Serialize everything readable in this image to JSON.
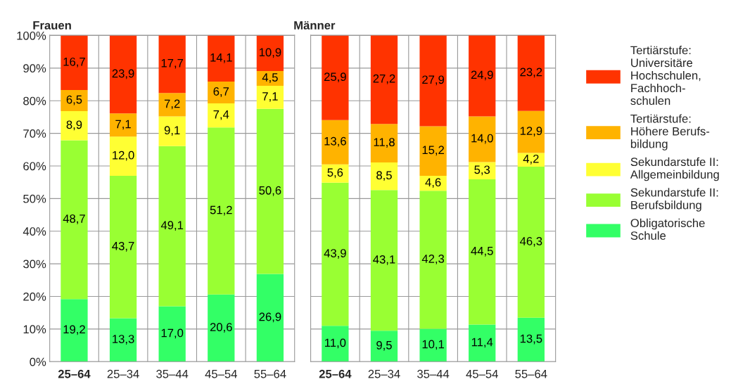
{
  "chart_data": [
    {
      "type": "bar",
      "stacked": true,
      "title": "Frauen",
      "categories": [
        "25–64",
        "25–34",
        "35–44",
        "45–54",
        "55–64"
      ],
      "ylim": [
        0,
        100.1
      ],
      "yticks": [
        {
          "value": 0,
          "label": "0%"
        },
        {
          "value": 10,
          "label": "10%"
        },
        {
          "value": 20,
          "label": "20%"
        },
        {
          "value": 30,
          "label": "30%"
        },
        {
          "value": 40,
          "label": "40%"
        },
        {
          "value": 50,
          "label": "50%"
        },
        {
          "value": 60,
          "label": "60%"
        },
        {
          "value": 70,
          "label": "70%"
        },
        {
          "value": 80,
          "label": "80%"
        },
        {
          "value": 90,
          "label": "90%"
        },
        {
          "value": 100,
          "label": "100%"
        }
      ],
      "grid": "y",
      "series": [
        {
          "color": "#33ff66",
          "values": [
            19.2,
            13.3,
            17.0,
            20.6,
            26.9
          ],
          "value_labels": [
            "19,2",
            "13,3",
            "17,0",
            "20,6",
            "26,9"
          ]
        },
        {
          "color": "#99ff33",
          "values": [
            48.7,
            43.7,
            49.1,
            51.2,
            50.6
          ],
          "value_labels": [
            "48,7",
            "43,7",
            "49,1",
            "51,2",
            "50,6"
          ]
        },
        {
          "color": "#ffff33",
          "values": [
            8.9,
            12.0,
            9.1,
            7.4,
            7.1
          ],
          "value_labels": [
            "8,9",
            "12,0",
            "9,1",
            "7,4",
            "7,1"
          ]
        },
        {
          "color": "#ffb300",
          "values": [
            6.5,
            7.1,
            7.2,
            6.7,
            4.5
          ],
          "value_labels": [
            "6,5",
            "7,1",
            "7,2",
            "6,7",
            "4,5"
          ]
        },
        {
          "color": "#ff3300",
          "values": [
            16.7,
            23.9,
            17.7,
            14.1,
            10.9
          ],
          "value_labels": [
            "16,7",
            "23,9",
            "17,7",
            "14,1",
            "10,9"
          ]
        }
      ]
    },
    {
      "type": "bar",
      "stacked": true,
      "title": "Männer",
      "categories": [
        "25–64",
        "25–34",
        "35–44",
        "45–54",
        "55–64"
      ],
      "ylim": [
        0,
        100.1
      ],
      "yticks": [
        {
          "value": 0,
          "label": null
        },
        {
          "value": 10,
          "label": null
        },
        {
          "value": 20,
          "label": null
        },
        {
          "value": 30,
          "label": null
        },
        {
          "value": 40,
          "label": null
        },
        {
          "value": 50,
          "label": null
        },
        {
          "value": 60,
          "label": null
        },
        {
          "value": 70,
          "label": null
        },
        {
          "value": 80,
          "label": null
        },
        {
          "value": 90,
          "label": null
        },
        {
          "value": 100,
          "label": null
        }
      ],
      "grid": "y",
      "tick_labels": "x",
      "legend": "right",
      "series": [
        {
          "name": "Obligatorische\nSchule",
          "color": "#33ff66",
          "values": [
            11.0,
            9.5,
            10.1,
            11.4,
            13.5
          ],
          "value_labels": [
            "11,0",
            "9,5",
            "10,1",
            "11,4",
            "13,5"
          ]
        },
        {
          "name": "Sekundarstufe II:\nBerufsbildung",
          "color": "#99ff33",
          "values": [
            43.9,
            43.1,
            42.3,
            44.5,
            46.3
          ],
          "value_labels": [
            "43,9",
            "43,1",
            "42,3",
            "44,5",
            "46,3"
          ]
        },
        {
          "name": "Sekundarstufe II:\nAllgemeinbildung",
          "color": "#ffff33",
          "values": [
            5.6,
            8.5,
            4.6,
            5.3,
            4.2
          ],
          "value_labels": [
            "5,6",
            "8,5",
            "4,6",
            "5,3",
            "4,2"
          ]
        },
        {
          "name": "Tertiärstufe:\nHöhere Berufs-\nbildung",
          "color": "#ffb300",
          "values": [
            13.6,
            11.8,
            15.2,
            14.0,
            12.9
          ],
          "value_labels": [
            "13,6",
            "11,8",
            "15,2",
            "14,0",
            "12,9"
          ]
        },
        {
          "name": "Tertiärstufe:\nUniversitäre\nHochschulen,\nFachhoch-\nschulen",
          "color": "#ff3300",
          "values": [
            25.9,
            27.2,
            27.9,
            24.9,
            23.2
          ],
          "value_labels": [
            "25,9",
            "27,2",
            "27,9",
            "24,9",
            "23,2"
          ]
        }
      ]
    }
  ]
}
